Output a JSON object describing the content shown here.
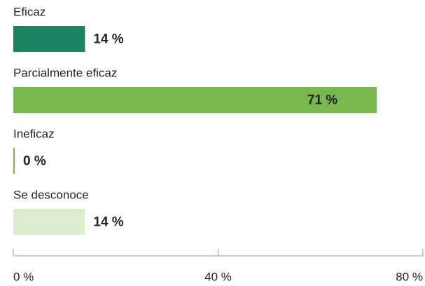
{
  "chart_data": {
    "type": "hbar",
    "categories": [
      "Eficaz",
      "Parcialmente eficaz",
      "Ineficaz",
      "Se desconoce"
    ],
    "values": [
      14,
      71,
      0,
      14
    ],
    "value_labels": [
      "14 %",
      "71 %",
      "0 %",
      "14 %"
    ],
    "colors": [
      "#1a8462",
      "#78b84f",
      "#78b84f",
      "#ddebcf"
    ],
    "xlim": [
      0,
      80
    ],
    "xticks": [
      {
        "value": 0,
        "label": "0 %"
      },
      {
        "value": 40,
        "label": "40 %"
      },
      {
        "value": 80,
        "label": "80 %"
      }
    ]
  }
}
